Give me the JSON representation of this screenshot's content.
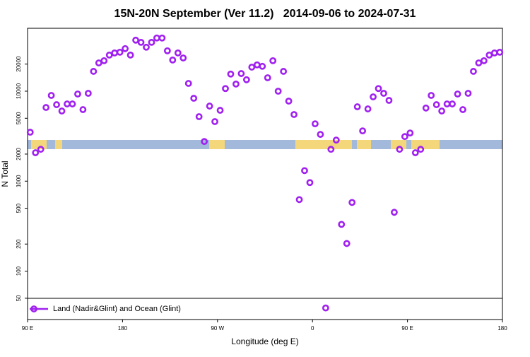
{
  "chart_data": {
    "type": "scatter",
    "title": "15N-20N September (Ver 11.2)   2014-09-06 to 2024-07-31",
    "xlabel": "Longitude (deg E)",
    "ylabel": "N Total",
    "log_y": true,
    "xlim": [
      90,
      540
    ],
    "ylim": [
      29,
      50000
    ],
    "xticks": [
      {
        "value": 90,
        "label": "90 E"
      },
      180,
      {
        "value": 270,
        "label": "90 W"
      },
      {
        "value": 360,
        "label": "0"
      },
      {
        "value": 450,
        "label": "90 E"
      },
      {
        "value": 540,
        "label": "180"
      }
    ],
    "yticks": [
      50,
      100,
      200,
      500,
      1000,
      2000,
      5000,
      10000,
      20000
    ],
    "legend": "bottom-left",
    "series": [
      {
        "name": "Land (Nadir&Glint) and Ocean (Glint)",
        "color": "#a020f0",
        "x": [
          92.5,
          97.5,
          102.5,
          107.5,
          112.5,
          117.5,
          122.5,
          127.5,
          132.5,
          137.5,
          142.5,
          147.5,
          152.5,
          157.5,
          162.5,
          167.5,
          172.5,
          177.5,
          182.5,
          187.5,
          192.5,
          197.5,
          202.5,
          207.5,
          212.5,
          217.5,
          222.5,
          227.5,
          232.5,
          237.5,
          242.5,
          247.5,
          252.5,
          257.5,
          262.5,
          267.5,
          272.5,
          277.5,
          282.5,
          287.5,
          292.5,
          297.5,
          302.5,
          307.5,
          312.5,
          317.5,
          322.5,
          327.5,
          332.5,
          337.5,
          342.5,
          347.5,
          352.5,
          357.5,
          362.5,
          367.5,
          372.5,
          377.5,
          382.5,
          387.5,
          392.5,
          397.5,
          402.5,
          407.5,
          412.5,
          417.5,
          422.5,
          427.5,
          432.5,
          437.5,
          442.5,
          447.5,
          452.5,
          457.5,
          462.5,
          467.5,
          472.5,
          477.5,
          482.5,
          487.5,
          492.5,
          497.5,
          502.5,
          507.5,
          512.5,
          517.5,
          522.5,
          527.5,
          532.5,
          537.5
        ],
        "values": [
          3500,
          2070,
          2260,
          6590,
          8970,
          7080,
          6020,
          7210,
          7210,
          9300,
          6240,
          9470,
          16600,
          20600,
          21800,
          25200,
          26600,
          27100,
          29700,
          25200,
          36900,
          34900,
          30800,
          34900,
          39000,
          39000,
          28100,
          22200,
          26600,
          23400,
          12200,
          8340,
          5210,
          2760,
          6830,
          4590,
          6130,
          10700,
          15500,
          12000,
          15700,
          13400,
          18500,
          19600,
          18900,
          14100,
          21800,
          10000,
          16600,
          7760,
          5500,
          624,
          1310,
          965,
          4340,
          3310,
          39,
          2260,
          2860,
          331,
          203,
          580,
          6710,
          3620,
          6350,
          8650,
          10700,
          9470,
          7900,
          451,
          2260,
          3130,
          3430,
          2070,
          2260,
          6500,
          8970,
          7080,
          6020,
          7210,
          7210,
          9300,
          6240,
          9470,
          16600,
          20600,
          21800,
          25200,
          26600,
          27100
        ]
      }
    ]
  }
}
